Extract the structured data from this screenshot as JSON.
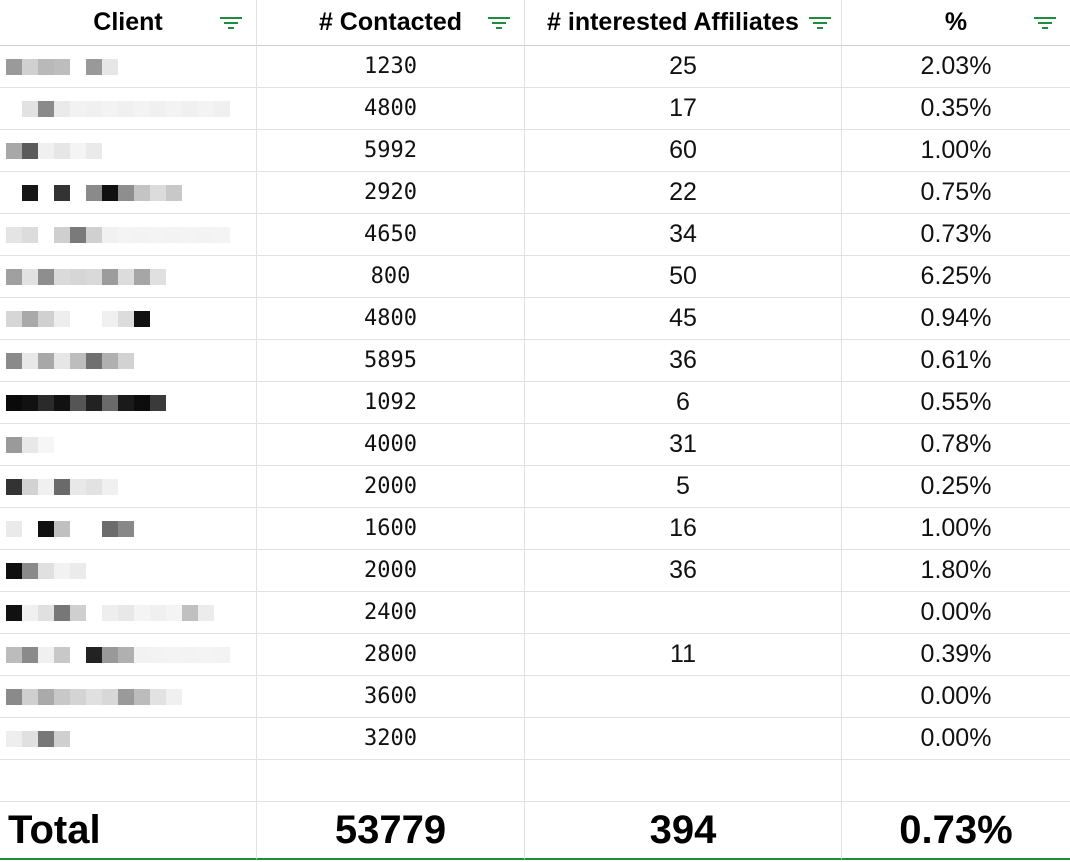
{
  "header": {
    "client": "Client",
    "contacted": "# Contacted",
    "interested": "# interested Affiliates",
    "percent": "%"
  },
  "rows": [
    {
      "contacted": "1230",
      "interested": "25",
      "percent": "2.03%"
    },
    {
      "contacted": "4800",
      "interested": "17",
      "percent": "0.35%"
    },
    {
      "contacted": "5992",
      "interested": "60",
      "percent": "1.00%"
    },
    {
      "contacted": "2920",
      "interested": "22",
      "percent": "0.75%"
    },
    {
      "contacted": "4650",
      "interested": "34",
      "percent": "0.73%"
    },
    {
      "contacted": "800",
      "interested": "50",
      "percent": "6.25%"
    },
    {
      "contacted": "4800",
      "interested": "45",
      "percent": "0.94%"
    },
    {
      "contacted": "5895",
      "interested": "36",
      "percent": "0.61%"
    },
    {
      "contacted": "1092",
      "interested": "6",
      "percent": "0.55%"
    },
    {
      "contacted": "4000",
      "interested": "31",
      "percent": "0.78%"
    },
    {
      "contacted": "2000",
      "interested": "5",
      "percent": "0.25%"
    },
    {
      "contacted": "1600",
      "interested": "16",
      "percent": "1.00%"
    },
    {
      "contacted": "2000",
      "interested": "36",
      "percent": "1.80%"
    },
    {
      "contacted": "2400",
      "interested": "",
      "percent": "0.00%"
    },
    {
      "contacted": "2800",
      "interested": "11",
      "percent": "0.39%"
    },
    {
      "contacted": "3600",
      "interested": "",
      "percent": "0.00%"
    },
    {
      "contacted": "3200",
      "interested": "",
      "percent": "0.00%"
    }
  ],
  "total": {
    "label": "Total",
    "contacted": "53779",
    "interested": "394",
    "percent": "0.73%"
  },
  "colors": {
    "filter_icon": "#1e8e3e",
    "gridline": "#e1e1e1",
    "total_underline": "#1e8e3e"
  }
}
